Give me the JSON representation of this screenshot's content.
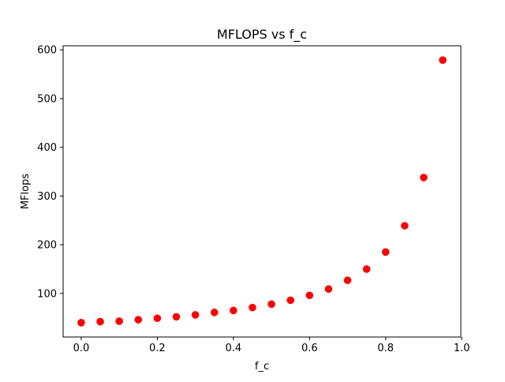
{
  "chart_data": {
    "type": "scatter",
    "title": "MFLOPS vs f_c",
    "xlabel": "f_c",
    "ylabel": "MFlops",
    "xlim": [
      -0.0475,
      0.9975
    ],
    "ylim": [
      10.5,
      608.5
    ],
    "xticks": [
      0.0,
      0.2,
      0.4,
      0.6,
      0.8,
      1.0
    ],
    "xtick_labels": [
      "0.0",
      "0.2",
      "0.4",
      "0.6",
      "0.8",
      "1.0"
    ],
    "yticks": [
      100,
      200,
      300,
      400,
      500,
      600
    ],
    "ytick_labels": [
      "100",
      "200",
      "300",
      "400",
      "500",
      "600"
    ],
    "grid": false,
    "marker_color": "#ff0000",
    "series": [
      {
        "x": [
          0.0,
          0.05,
          0.1,
          0.15,
          0.2,
          0.25,
          0.3,
          0.35,
          0.4,
          0.45,
          0.5,
          0.55,
          0.6,
          0.65,
          0.7,
          0.75,
          0.8,
          0.85,
          0.9,
          0.95
        ],
        "y": [
          40,
          42,
          43,
          46,
          49,
          52,
          56,
          61,
          65,
          71,
          78,
          86,
          96,
          109,
          127,
          150,
          185,
          239,
          338,
          579
        ]
      }
    ]
  }
}
